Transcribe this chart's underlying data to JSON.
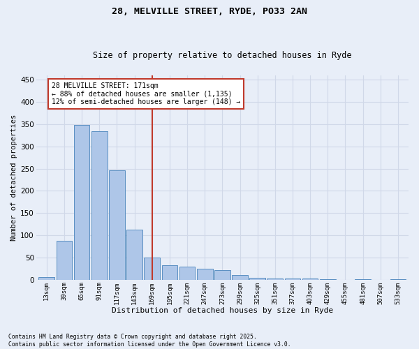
{
  "title1": "28, MELVILLE STREET, RYDE, PO33 2AN",
  "title2": "Size of property relative to detached houses in Ryde",
  "xlabel": "Distribution of detached houses by size in Ryde",
  "ylabel": "Number of detached properties",
  "categories": [
    "13sqm",
    "39sqm",
    "65sqm",
    "91sqm",
    "117sqm",
    "143sqm",
    "169sqm",
    "195sqm",
    "221sqm",
    "247sqm",
    "273sqm",
    "299sqm",
    "325sqm",
    "351sqm",
    "377sqm",
    "403sqm",
    "429sqm",
    "455sqm",
    "481sqm",
    "507sqm",
    "533sqm"
  ],
  "values": [
    6,
    88,
    349,
    335,
    247,
    113,
    50,
    32,
    30,
    25,
    21,
    10,
    5,
    3,
    3,
    3,
    1,
    0,
    2,
    0,
    1
  ],
  "bar_color": "#aec6e8",
  "bar_edge_color": "#5a8fc2",
  "vline_color": "#c0392b",
  "annotation_text": "28 MELVILLE STREET: 171sqm\n← 88% of detached houses are smaller (1,135)\n12% of semi-detached houses are larger (148) →",
  "annotation_box_color": "#c0392b",
  "ylim": [
    0,
    460
  ],
  "yticks": [
    0,
    50,
    100,
    150,
    200,
    250,
    300,
    350,
    400,
    450
  ],
  "grid_color": "#d0d8e8",
  "bg_color": "#e8eef8",
  "footnote": "Contains HM Land Registry data © Crown copyright and database right 2025.\nContains public sector information licensed under the Open Government Licence v3.0."
}
